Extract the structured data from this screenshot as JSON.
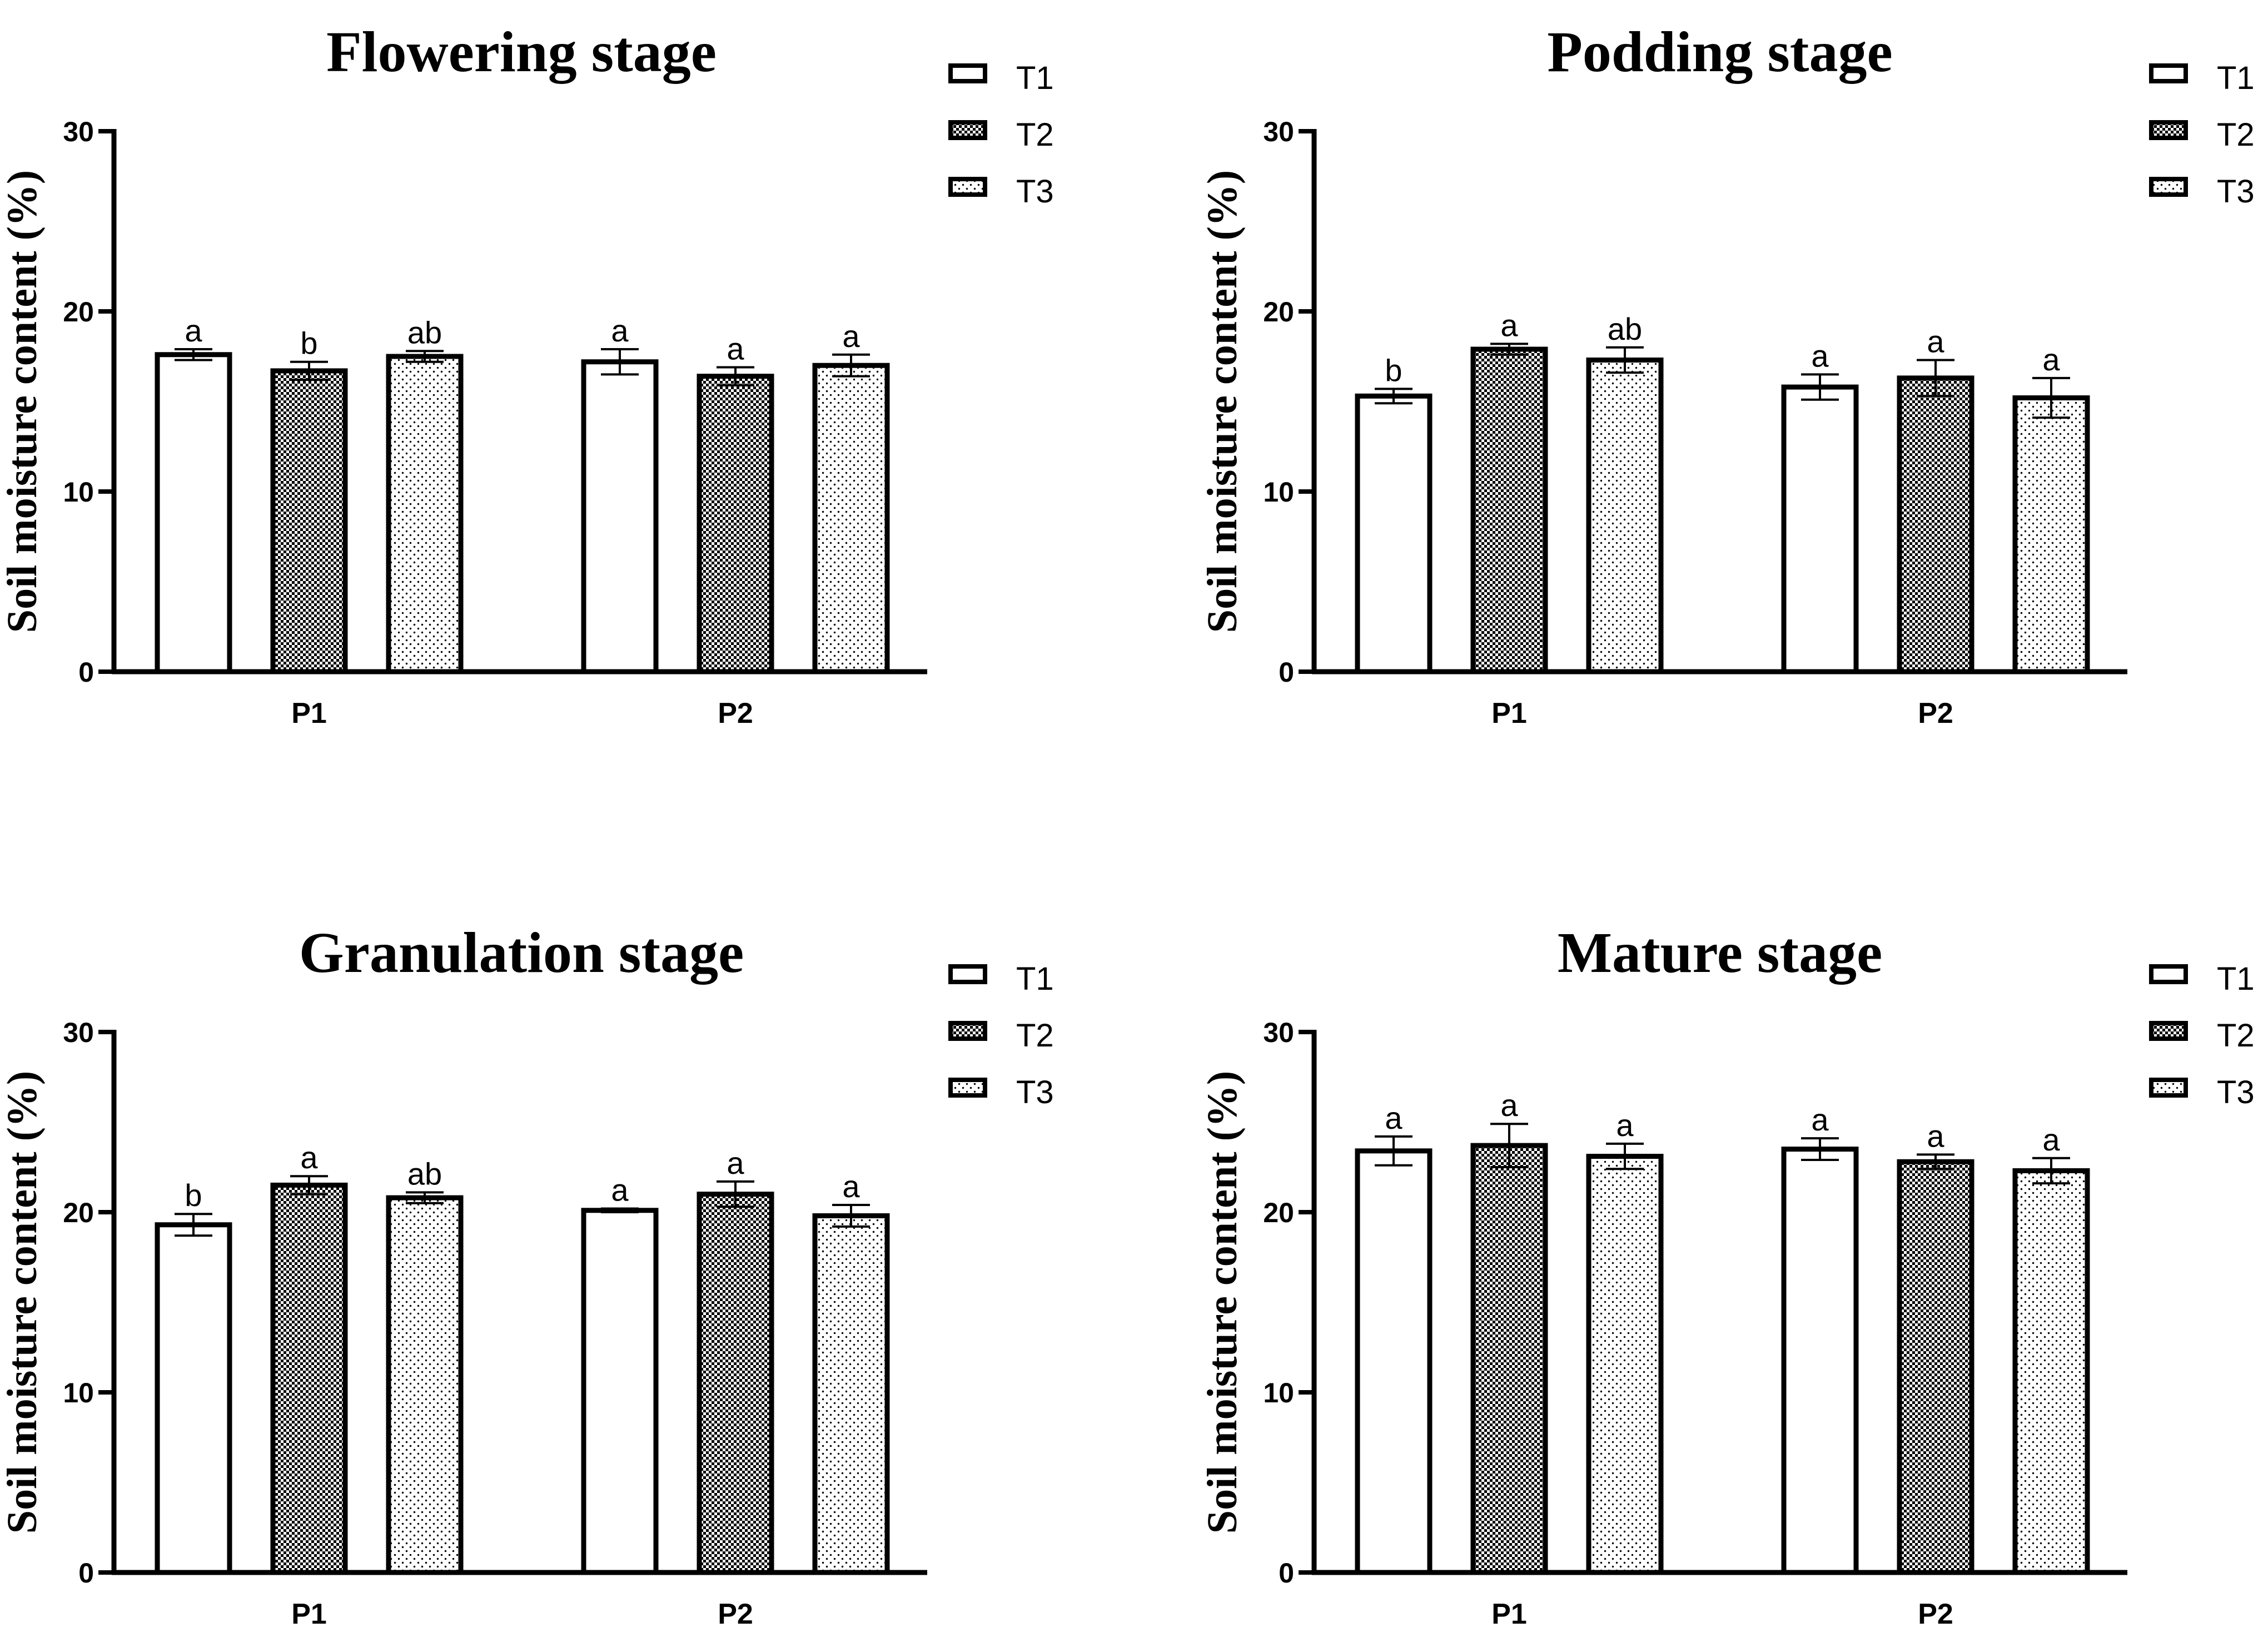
{
  "chart_data": [
    {
      "type": "bar",
      "title": "Flowering stage",
      "ylabel": "Soil moisture content (%)",
      "xlabel": "",
      "ylim": [
        0,
        30
      ],
      "yticks": [
        0,
        10,
        20,
        30
      ],
      "categories": [
        "P1",
        "P2"
      ],
      "legend": {
        "position": "top-right"
      },
      "series": [
        {
          "name": "T1",
          "pattern": "white",
          "values": [
            17.6,
            17.2
          ],
          "errors": [
            0.3,
            0.7
          ],
          "labels": [
            "a",
            "a"
          ]
        },
        {
          "name": "T2",
          "pattern": "checker",
          "values": [
            16.7,
            16.4
          ],
          "errors": [
            0.5,
            0.5
          ],
          "labels": [
            "b",
            "a"
          ]
        },
        {
          "name": "T3",
          "pattern": "dots",
          "values": [
            17.5,
            17.0
          ],
          "errors": [
            0.3,
            0.6
          ],
          "labels": [
            "ab",
            "a"
          ]
        }
      ]
    },
    {
      "type": "bar",
      "title": "Podding stage",
      "ylabel": "Soil moisture content (%)",
      "xlabel": "",
      "ylim": [
        0,
        30
      ],
      "yticks": [
        0,
        10,
        20,
        30
      ],
      "categories": [
        "P1",
        "P2"
      ],
      "legend": {
        "position": "top-right"
      },
      "series": [
        {
          "name": "T1",
          "pattern": "white",
          "values": [
            15.3,
            15.8
          ],
          "errors": [
            0.4,
            0.7
          ],
          "labels": [
            "b",
            "a"
          ]
        },
        {
          "name": "T2",
          "pattern": "checker",
          "values": [
            17.9,
            16.3
          ],
          "errors": [
            0.3,
            1.0
          ],
          "labels": [
            "a",
            "a"
          ]
        },
        {
          "name": "T3",
          "pattern": "dots",
          "values": [
            17.3,
            15.2
          ],
          "errors": [
            0.7,
            1.1
          ],
          "labels": [
            "ab",
            "a"
          ]
        }
      ]
    },
    {
      "type": "bar",
      "title": "Granulation stage",
      "ylabel": "Soil moisture content (%)",
      "xlabel": "",
      "ylim": [
        0,
        30
      ],
      "yticks": [
        0,
        10,
        20,
        30
      ],
      "categories": [
        "P1",
        "P2"
      ],
      "legend": {
        "position": "top-right"
      },
      "series": [
        {
          "name": "T1",
          "pattern": "white",
          "values": [
            19.3,
            20.1
          ],
          "errors": [
            0.6,
            0.1
          ],
          "labels": [
            "b",
            "a"
          ]
        },
        {
          "name": "T2",
          "pattern": "checker",
          "values": [
            21.5,
            21.0
          ],
          "errors": [
            0.5,
            0.7
          ],
          "labels": [
            "a",
            "a"
          ]
        },
        {
          "name": "T3",
          "pattern": "dots",
          "values": [
            20.8,
            19.8
          ],
          "errors": [
            0.3,
            0.6
          ],
          "labels": [
            "ab",
            "a"
          ]
        }
      ]
    },
    {
      "type": "bar",
      "title": "Mature stage",
      "ylabel": "Soil moisture content (%)",
      "xlabel": "",
      "ylim": [
        0,
        30
      ],
      "yticks": [
        0,
        10,
        20,
        30
      ],
      "categories": [
        "P1",
        "P2"
      ],
      "legend": {
        "position": "top-right"
      },
      "series": [
        {
          "name": "T1",
          "pattern": "white",
          "values": [
            23.4,
            23.5
          ],
          "errors": [
            0.8,
            0.6
          ],
          "labels": [
            "a",
            "a"
          ]
        },
        {
          "name": "T2",
          "pattern": "checker",
          "values": [
            23.7,
            22.8
          ],
          "errors": [
            1.2,
            0.4
          ],
          "labels": [
            "a",
            "a"
          ]
        },
        {
          "name": "T3",
          "pattern": "dots",
          "values": [
            23.1,
            22.3
          ],
          "errors": [
            0.7,
            0.7
          ],
          "labels": [
            "a",
            "a"
          ]
        }
      ]
    }
  ]
}
